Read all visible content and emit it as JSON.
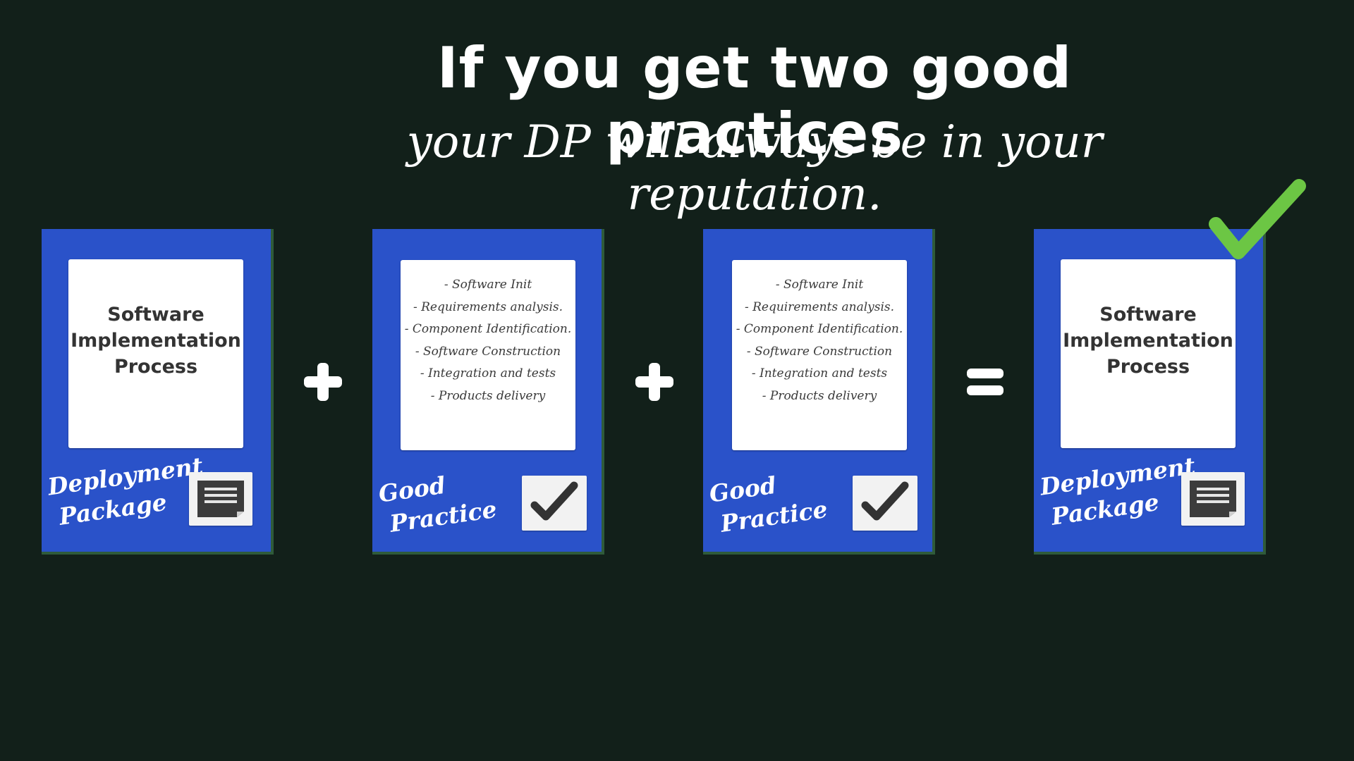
{
  "header": {
    "title": "If you get two good practices",
    "subtitle": "your DP will always be in your reputation."
  },
  "cards": [
    {
      "kind": "deployment-package",
      "heading": [
        "Software",
        "Implementation",
        "Process"
      ],
      "label": [
        "Deployment",
        "Package"
      ],
      "icon": "document-icon"
    },
    {
      "kind": "good-practice",
      "items": [
        "- Software Init",
        "- Requirements analysis.",
        "- Component Identification.",
        "- Software Construction",
        "- Integration and tests",
        "- Products delivery"
      ],
      "label": [
        "Good",
        "Practice"
      ],
      "icon": "checkmark-icon"
    },
    {
      "kind": "good-practice",
      "items": [
        "- Software Init",
        "- Requirements analysis.",
        "- Component Identification.",
        "- Software Construction",
        "- Integration and tests",
        "- Products delivery"
      ],
      "label": [
        "Good",
        "Practice"
      ],
      "icon": "checkmark-icon"
    },
    {
      "kind": "deployment-package",
      "heading": [
        "Software",
        "Implementation",
        "Process"
      ],
      "label": [
        "Deployment",
        "Package"
      ],
      "icon": "document-icon"
    }
  ],
  "operators": [
    "plus",
    "plus",
    "equals"
  ],
  "result_mark": "green-checkmark-icon",
  "colors": {
    "background": "#12201a",
    "card_blue": "#2a52c9",
    "card_border": "#2f5b3a",
    "check_green": "#6cc644",
    "text_white": "#ffffff",
    "paper_text": "#333333"
  }
}
